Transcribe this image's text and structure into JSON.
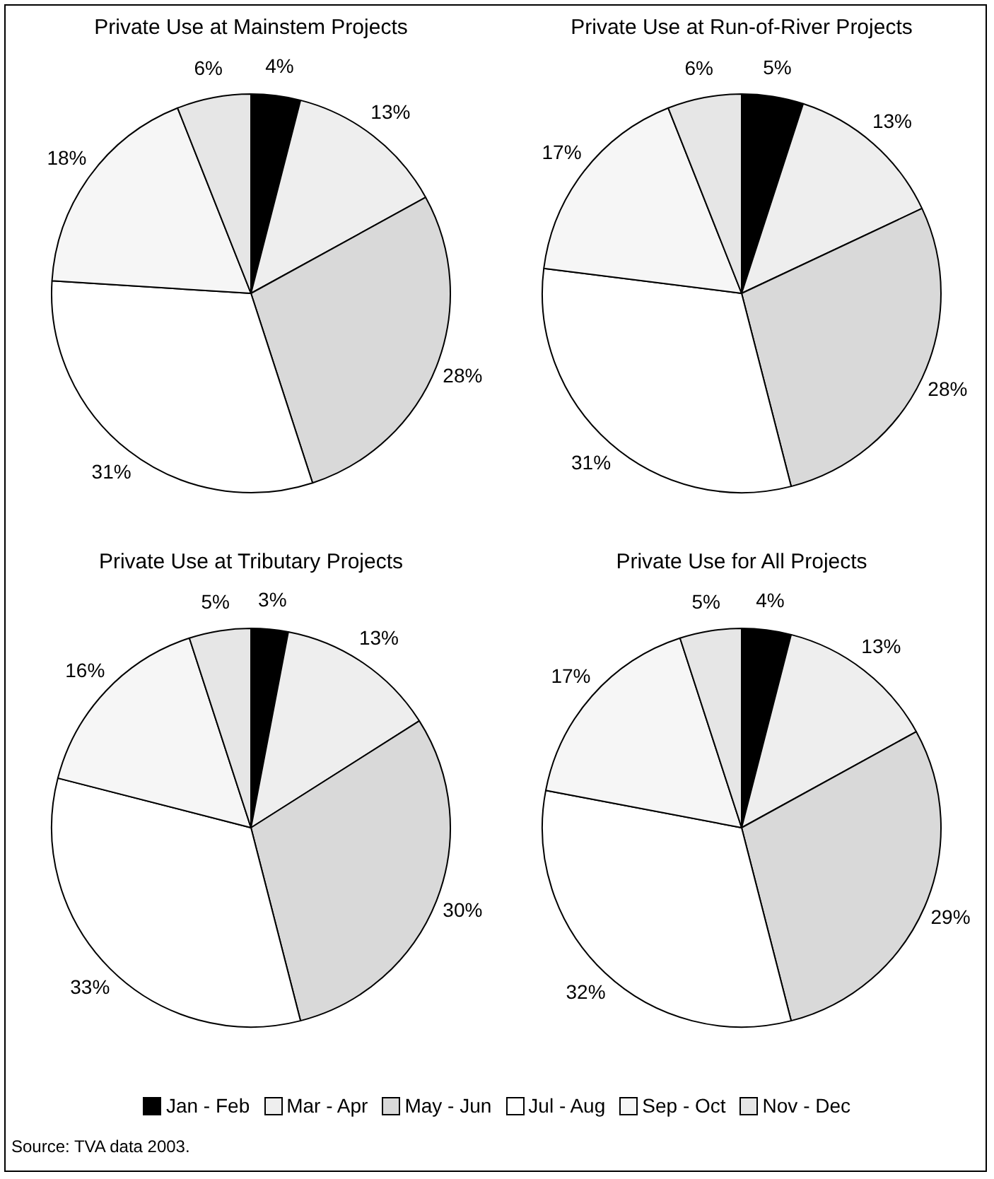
{
  "chart_data": [
    {
      "type": "pie",
      "title": "Private Use at Mainstem Projects",
      "categories": [
        "Jan - Feb",
        "Mar - Apr",
        "May - Jun",
        "Jul - Aug",
        "Sep - Oct",
        "Nov - Dec"
      ],
      "values": [
        4,
        13,
        28,
        31,
        18,
        6
      ],
      "value_labels": [
        "4%",
        "13%",
        "28%",
        "31%",
        "18%",
        "6%"
      ],
      "colors": [
        "#000000",
        "#eeeeee",
        "#d9d9d9",
        "#ffffff",
        "#f6f6f6",
        "#e6e6e6"
      ],
      "legend": "bottom"
    },
    {
      "type": "pie",
      "title": "Private Use at Run-of-River Projects",
      "categories": [
        null,
        null,
        null,
        null,
        null,
        null
      ],
      "values": [
        5,
        13,
        28,
        31,
        17,
        6
      ],
      "value_labels": [
        "5%",
        "13%",
        "28%",
        "31%",
        "17%",
        "6%"
      ],
      "colors": [
        "#000000",
        "#eeeeee",
        "#d9d9d9",
        "#ffffff",
        "#f6f6f6",
        "#e6e6e6"
      ]
    },
    {
      "type": "pie",
      "title": "Private Use at Tributary Projects",
      "categories": [
        null,
        null,
        null,
        null,
        null,
        null
      ],
      "values": [
        3,
        13,
        30,
        33,
        16,
        5
      ],
      "value_labels": [
        "3%",
        "13%",
        "30%",
        "33%",
        "16%",
        "5%"
      ],
      "colors": [
        "#000000",
        "#eeeeee",
        "#d9d9d9",
        "#ffffff",
        "#f6f6f6",
        "#e6e6e6"
      ]
    },
    {
      "type": "pie",
      "title": "Private Use for All Projects",
      "categories": [
        null,
        null,
        null,
        null,
        null,
        null
      ],
      "values": [
        4,
        13,
        29,
        32,
        17,
        5
      ],
      "value_labels": [
        "4%",
        "13%",
        "29%",
        "32%",
        "17%",
        "5%"
      ],
      "colors": [
        "#000000",
        "#eeeeee",
        "#d9d9d9",
        "#ffffff",
        "#f6f6f6",
        "#e6e6e6"
      ],
      "annotations": [
        "Source:  TVA data 2003."
      ]
    }
  ]
}
